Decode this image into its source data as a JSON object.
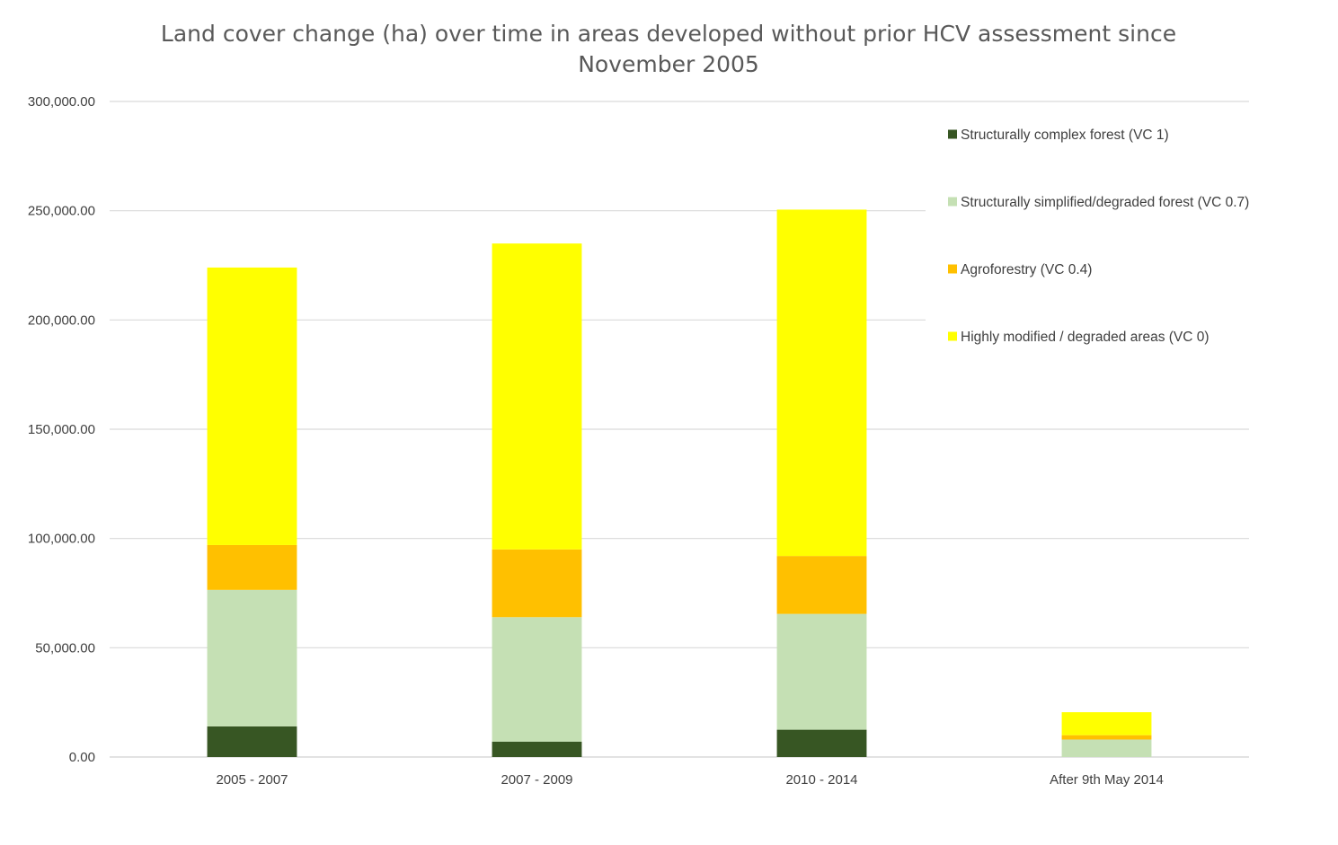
{
  "chart_data": {
    "type": "bar",
    "stacked": true,
    "title_lines": [
      "Land cover change (ha) over time in areas developed without prior HCV assessment since",
      "November 2005"
    ],
    "title": "Land cover change (ha) over time in areas developed without prior HCV assessment since November 2005",
    "xlabel": "",
    "ylabel": "",
    "categories": [
      "2005 - 2007",
      "2007 - 2009",
      "2010 - 2014",
      "After 9th May 2014"
    ],
    "y_ticks": [
      "0.00",
      "50,000.00",
      "100,000.00",
      "150,000.00",
      "200,000.00",
      "250,000.00",
      "300,000.00"
    ],
    "ylim": [
      0,
      300000
    ],
    "grid": true,
    "legend_position": "top-right",
    "series": [
      {
        "name": "Structurally complex forest (VC 1)",
        "color": "#375623",
        "values": [
          14000,
          7000,
          12500,
          0
        ]
      },
      {
        "name": "Structurally simplified/degraded forest (VC 0.7)",
        "color": "#c5e0b4",
        "values": [
          62500,
          57000,
          53000,
          8000
        ]
      },
      {
        "name": "Agroforestry (VC 0.4)",
        "color": "#ffc000",
        "values": [
          20500,
          31000,
          26500,
          2000
        ]
      },
      {
        "name": "Highly modified / degraded areas (VC 0)",
        "color": "#ffff00",
        "values": [
          127000,
          140000,
          158500,
          10500
        ]
      }
    ]
  }
}
